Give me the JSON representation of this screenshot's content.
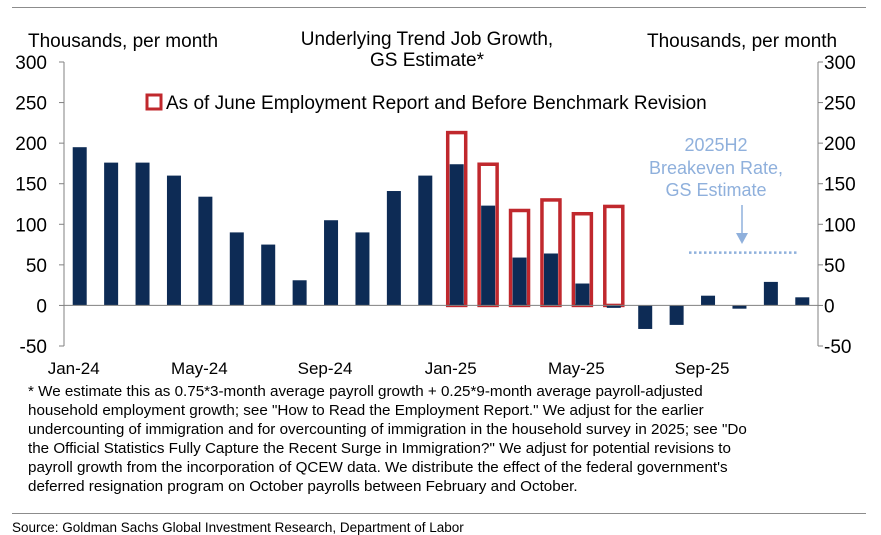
{
  "chart_data": {
    "type": "bar",
    "title_lines": [
      "Underlying Trend Job Growth,",
      "GS Estimate*"
    ],
    "ylabel_left": "Thousands, per month",
    "ylabel_right": "Thousands, per month",
    "ylim": [
      -50,
      300
    ],
    "yticks": [
      -50,
      0,
      50,
      100,
      150,
      200,
      250,
      300
    ],
    "months": [
      "Jan-24",
      "Feb-24",
      "Mar-24",
      "Apr-24",
      "May-24",
      "Jun-24",
      "Jul-24",
      "Aug-24",
      "Sep-24",
      "Oct-24",
      "Nov-24",
      "Dec-24",
      "Jan-25",
      "Feb-25",
      "Mar-25",
      "Apr-25",
      "May-25",
      "Jun-25",
      "Jul-25",
      "Aug-25",
      "Sep-25",
      "Oct-25",
      "Nov-25",
      "Dec-25"
    ],
    "xtick_labels": [
      "Jan-24",
      "May-24",
      "Sep-24",
      "Jan-25",
      "May-25",
      "Sep-25"
    ],
    "series": [
      {
        "name": "Underlying Trend Job Growth",
        "color": "#0d2b55",
        "values": [
          195,
          176,
          176,
          160,
          134,
          90,
          75,
          31,
          105,
          90,
          141,
          160,
          174,
          123,
          59,
          64,
          27,
          -3,
          -29,
          -24,
          12,
          -4,
          29,
          10
        ]
      },
      {
        "name": "As of June Employment Report and Before Benchmark Revision",
        "color": "#c0282d",
        "values": [
          null,
          null,
          null,
          null,
          null,
          null,
          null,
          null,
          null,
          null,
          null,
          null,
          213,
          174,
          117,
          130,
          113,
          122,
          null,
          null,
          null,
          null,
          null,
          null
        ]
      }
    ],
    "breakeven": {
      "label_lines": [
        "2025H2",
        "Breakeven Rate,",
        "GS Estimate"
      ],
      "value": 65,
      "color": "#8fb0dc"
    },
    "legend": "top-center"
  },
  "footnote_lines": [
    "* We estimate this as 0.75*3-month  average payroll growth + 0.25*9-month  average payroll-adjusted",
    "household employment  growth; see \"How to Read the Employment  Report.\" We adjust for the earlier",
    "undercounting of immigration  and  for overcounting of immigration  in the household survey in 2025; see \"Do",
    "the Official Statistics Fully Capture  the Recent Surge in Immigration?\"  We adjust for potential revisions to",
    "payroll growth from the incorporation of QCEW  data. We distribute the effect of the federal government's",
    "deferred resignation program on October payrolls between February and October."
  ],
  "source": "Source: Goldman Sachs Global Investment Research, Department of Labor"
}
